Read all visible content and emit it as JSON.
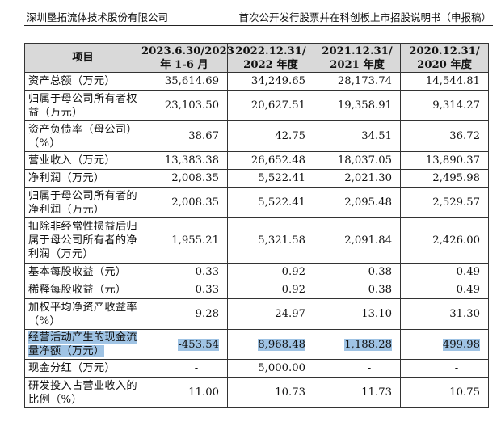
{
  "header": {
    "company": "深圳垦拓流体技术股份有限公司",
    "doc_title": "首次公开发行股票并在科创板上市招股说明书（申报稿）"
  },
  "table": {
    "columns": [
      "项目",
      "2023.6.30/2023\n年 1-6 月",
      "2022.12.31/\n2022 年度",
      "2021.12.31/\n2021 年度",
      "2020.12.31/\n2020 年度"
    ],
    "rows": [
      {
        "label": "资产总额（万元）",
        "values": [
          "35,614.69",
          "34,249.65",
          "28,173.74",
          "14,544.81"
        ]
      },
      {
        "label": "归属于母公司所有者权益（万元）",
        "values": [
          "23,103.50",
          "20,627.51",
          "19,358.91",
          "9,314.27"
        ]
      },
      {
        "label": "资产负债率（母公司）（%）",
        "values": [
          "38.67",
          "42.75",
          "34.51",
          "36.72"
        ]
      },
      {
        "label": "营业收入（万元）",
        "values": [
          "13,383.38",
          "26,652.48",
          "18,037.05",
          "13,890.37"
        ]
      },
      {
        "label": "净利润（万元）",
        "values": [
          "2,008.35",
          "5,522.41",
          "2,021.30",
          "2,495.98"
        ]
      },
      {
        "label": "归属于母公司所有者的净利润（万元）",
        "values": [
          "2,008.35",
          "5,522.41",
          "2,095.48",
          "2,529.57"
        ]
      },
      {
        "label": "扣除非经常性损益后归属于母公司所有者的净利润（万元）",
        "values": [
          "1,955.21",
          "5,321.58",
          "2,091.84",
          "2,426.00"
        ]
      },
      {
        "label": "基本每股收益（元）",
        "values": [
          "0.33",
          "0.92",
          "0.38",
          "0.49"
        ]
      },
      {
        "label": "稀释每股收益（元）",
        "values": [
          "0.33",
          "0.92",
          "0.38",
          "0.49"
        ]
      },
      {
        "label": "加权平均净资产收益率（%）",
        "values": [
          "9.28",
          "24.97",
          "13.10",
          "31.30"
        ]
      },
      {
        "label": "经营活动产生的现金流量净额（万元）",
        "values": [
          "-453.54",
          "8,968.48",
          "1,188.28",
          "499.98"
        ],
        "highlight": true
      },
      {
        "label": "现金分红（万元）",
        "values": [
          "-",
          "5,000.00",
          "-",
          "-"
        ]
      },
      {
        "label": "研发投入占营业收入的比例（%）",
        "values": [
          "11.00",
          "10.73",
          "11.73",
          "10.75"
        ]
      }
    ]
  },
  "colors": {
    "header_bg": "#d9d9d9",
    "highlight": "#9fc3e4"
  }
}
